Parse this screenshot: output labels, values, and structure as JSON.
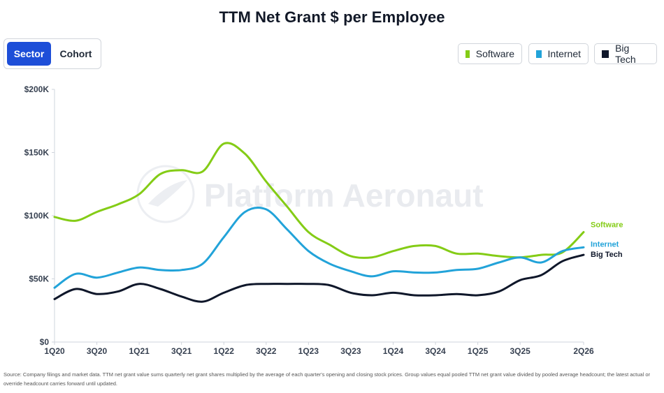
{
  "title": "TTM Net Grant $ per Employee",
  "toggle": {
    "options": [
      "Sector",
      "Cohort"
    ],
    "selected": "Sector"
  },
  "legend": [
    {
      "label": "Software",
      "color": "#84cc16"
    },
    {
      "label": "Internet",
      "color": "#22a3d9"
    },
    {
      "label": "Big Tech",
      "color": "#0f172a"
    }
  ],
  "watermark": "Platform Aeronaut",
  "footnote": "Source: Company filings and market data. TTM net grant value sums quarterly net grant shares multiplied by the average of each quarter's opening and closing stock prices. Group values equal pooled TTM net grant value divided by pooled average headcount; the latest actual or override headcount carries forward until updated.",
  "chart_data": {
    "type": "line",
    "x": [
      "1Q20",
      "2Q20",
      "3Q20",
      "4Q20",
      "1Q21",
      "2Q21",
      "3Q21",
      "4Q21",
      "1Q22",
      "2Q22",
      "3Q22",
      "4Q22",
      "1Q23",
      "2Q23",
      "3Q23",
      "4Q23",
      "1Q24",
      "2Q24",
      "3Q24",
      "4Q24",
      "1Q25",
      "2Q25",
      "3Q25",
      "4Q25",
      "1Q26",
      "2Q26"
    ],
    "x_tick_labels": [
      "1Q20",
      "3Q20",
      "1Q21",
      "3Q21",
      "1Q22",
      "3Q22",
      "1Q23",
      "3Q23",
      "1Q24",
      "3Q24",
      "1Q25",
      "3Q25",
      "2Q26"
    ],
    "ylim": [
      0,
      200000
    ],
    "y_ticks": [
      0,
      50000,
      100000,
      150000,
      200000
    ],
    "y_tick_labels": [
      "$0",
      "$50K",
      "$100K",
      "$150K",
      "$200K"
    ],
    "grid": false,
    "legend_position": "top-right",
    "series": [
      {
        "name": "Software",
        "color": "#84cc16",
        "values": [
          99000,
          96000,
          103000,
          109000,
          117000,
          133000,
          136000,
          135000,
          157000,
          149000,
          127000,
          107000,
          87000,
          77000,
          68000,
          67000,
          72000,
          76000,
          76000,
          70000,
          70000,
          68000,
          67000,
          69000,
          71000,
          87000
        ]
      },
      {
        "name": "Internet",
        "color": "#22a3d9",
        "values": [
          43000,
          54000,
          51000,
          55000,
          59000,
          57000,
          57000,
          62000,
          83000,
          103000,
          105000,
          89000,
          72000,
          62000,
          56000,
          52000,
          56000,
          55000,
          55000,
          57000,
          58000,
          63000,
          67000,
          63000,
          72000,
          75000
        ]
      },
      {
        "name": "Big Tech",
        "color": "#0f172a",
        "values": [
          34000,
          42000,
          38000,
          40000,
          46000,
          42000,
          36000,
          32000,
          39000,
          45000,
          46000,
          46000,
          46000,
          45000,
          39000,
          37000,
          39000,
          37000,
          37000,
          38000,
          37000,
          40000,
          49000,
          53000,
          64000,
          69000
        ]
      }
    ],
    "end_labels": [
      "Software",
      "Internet",
      "Big Tech"
    ]
  }
}
